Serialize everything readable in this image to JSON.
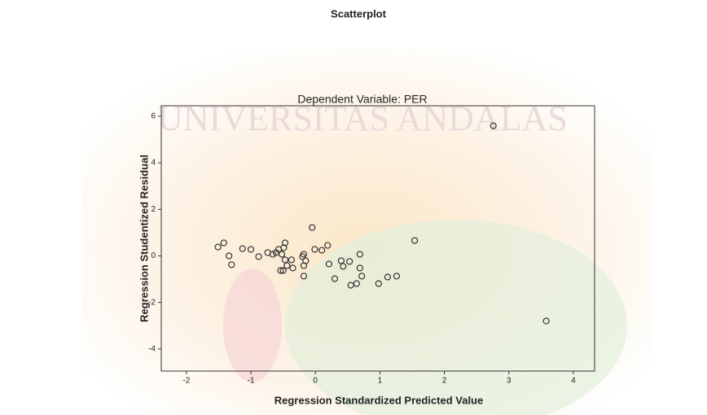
{
  "chart_data": {
    "type": "scatter",
    "title": "Scatterplot",
    "subtitle": "Dependent Variable: PER",
    "watermark": "UNIVERSITAS ANDALAS",
    "x_label": "Regression Standardized Predicted Value",
    "y_label": "Regression Studentized Residual",
    "color": "#333333",
    "grid": false,
    "xlim": [
      -2.39,
      4.33
    ],
    "ylim": [
      -4.95,
      6.45
    ],
    "xticks": [
      -2,
      -1,
      0,
      1,
      2,
      3,
      4
    ],
    "yticks": [
      -4,
      -2,
      0,
      2,
      4,
      6
    ],
    "x": [
      -1.51,
      -1.42,
      -1.34,
      -1.3,
      -1.13,
      -1.0,
      -0.88,
      -0.74,
      -0.66,
      -0.61,
      -0.57,
      -0.52,
      -0.49,
      -0.47,
      -0.54,
      -0.5,
      -0.47,
      -0.44,
      -0.37,
      -0.35,
      -0.2,
      -0.18,
      -0.15,
      -0.18,
      -0.18,
      -0.05,
      -0.01,
      0.1,
      0.19,
      0.21,
      0.3,
      0.4,
      0.43,
      0.53,
      0.55,
      0.64,
      0.69,
      0.69,
      0.72,
      0.98,
      1.12,
      1.26,
      1.54,
      2.76,
      3.58
    ],
    "values": [
      0.38,
      0.56,
      0.0,
      -0.38,
      0.31,
      0.28,
      -0.03,
      0.14,
      0.07,
      0.14,
      0.28,
      0.07,
      0.35,
      0.56,
      -0.63,
      -0.63,
      -0.17,
      -0.42,
      -0.17,
      -0.52,
      -0.03,
      0.07,
      -0.21,
      -0.42,
      -0.87,
      1.22,
      0.28,
      0.24,
      0.45,
      -0.35,
      -0.98,
      -0.21,
      -0.45,
      -0.24,
      -1.26,
      -1.19,
      0.07,
      -0.52,
      -0.87,
      -1.19,
      -0.91,
      -0.87,
      0.66,
      5.59,
      -2.8
    ]
  }
}
